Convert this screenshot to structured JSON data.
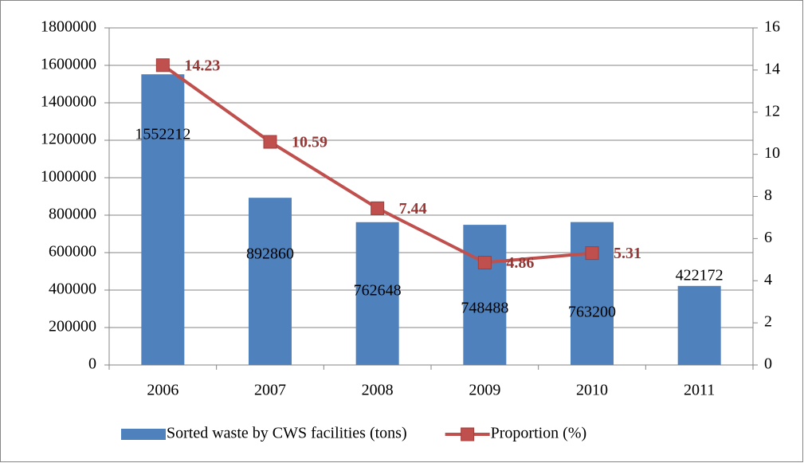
{
  "chart_data": {
    "type": "combo",
    "categories": [
      "2006",
      "2007",
      "2008",
      "2009",
      "2010",
      "2011"
    ],
    "series": [
      {
        "name": "Sorted waste by CWS facilities (tons)",
        "type": "bar",
        "color": "#4f81bd",
        "values": [
          1552212,
          892860,
          762648,
          748488,
          763200,
          422172
        ]
      },
      {
        "name": "Proportion (%)",
        "type": "line",
        "axis": "y2",
        "color": "#c0504d",
        "values": [
          14.23,
          10.59,
          7.44,
          4.86,
          5.31,
          null
        ]
      }
    ],
    "ylim": [
      0,
      1800000
    ],
    "yticks": [
      0,
      200000,
      400000,
      600000,
      800000,
      1000000,
      1200000,
      1400000,
      1600000,
      1800000
    ],
    "y2lim": [
      0,
      16
    ],
    "y2ticks": [
      0,
      2,
      4,
      6,
      8,
      10,
      12,
      14,
      16
    ],
    "grid": true,
    "legend": "bottom"
  }
}
